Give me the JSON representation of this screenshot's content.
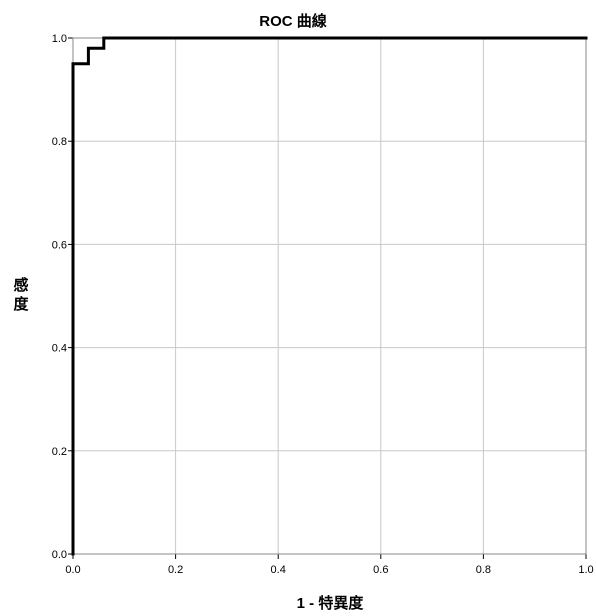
{
  "chart_data": {
    "type": "line",
    "title": "ROC 曲線",
    "xlabel": "1 - 特異度",
    "ylabel_chars": [
      "感",
      "度"
    ],
    "xlim": [
      0.0,
      1.0
    ],
    "ylim": [
      0.0,
      1.0
    ],
    "xticks": [
      "0.0",
      "0.2",
      "0.4",
      "0.6",
      "0.8",
      "1.0"
    ],
    "yticks": [
      "0.0",
      "0.2",
      "0.4",
      "0.6",
      "0.8",
      "1.0"
    ],
    "grid": true,
    "series": [
      {
        "color": "#000000",
        "x": [
          0.0,
          0.0,
          0.03,
          0.03,
          0.06,
          0.06,
          1.0
        ],
        "y": [
          0.0,
          0.95,
          0.95,
          0.98,
          0.98,
          1.0,
          1.0
        ]
      }
    ]
  }
}
